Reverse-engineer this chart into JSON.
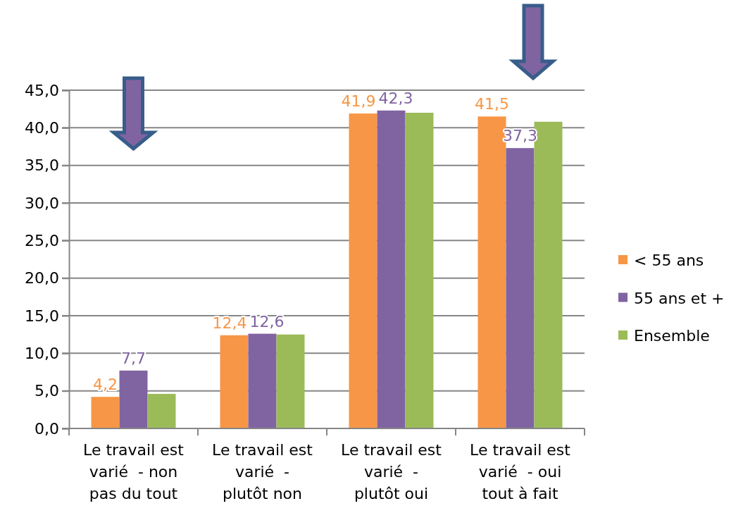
{
  "chart_data": {
    "type": "bar",
    "categories": [
      "Le travail est varié  - non pas du tout",
      "Le travail est varié  - plutôt non",
      "Le travail est varié  - plutôt oui",
      "Le travail est varié  - oui tout à fait"
    ],
    "series": [
      {
        "name": "< 55 ans",
        "color": "#f79646",
        "values": [
          4.2,
          12.4,
          41.9,
          41.5
        ],
        "value_labels": [
          "4,2",
          "12,4",
          "41,9",
          "41,5"
        ]
      },
      {
        "name": "55 ans et +",
        "color": "#8064a2",
        "values": [
          7.7,
          12.6,
          42.3,
          37.3
        ],
        "value_labels": [
          "7,7",
          "12,6",
          "42,3",
          "37,3"
        ]
      },
      {
        "name": "Ensemble",
        "color": "#9bbb59",
        "values": [
          4.6,
          12.5,
          42.0,
          40.8
        ]
      }
    ],
    "ylim": [
      0,
      45
    ],
    "yticks": [
      {
        "value": 0,
        "label": "0,0"
      },
      {
        "value": 5,
        "label": "5,0"
      },
      {
        "value": 10,
        "label": "10,0"
      },
      {
        "value": 15,
        "label": "15,0"
      },
      {
        "value": 20,
        "label": "20,0"
      },
      {
        "value": 25,
        "label": "25,0"
      },
      {
        "value": 30,
        "label": "30,0"
      },
      {
        "value": 35,
        "label": "35,0"
      },
      {
        "value": 40,
        "label": "40,0"
      },
      {
        "value": 45,
        "label": "45,0"
      }
    ],
    "grid": "y",
    "legend": "right"
  }
}
